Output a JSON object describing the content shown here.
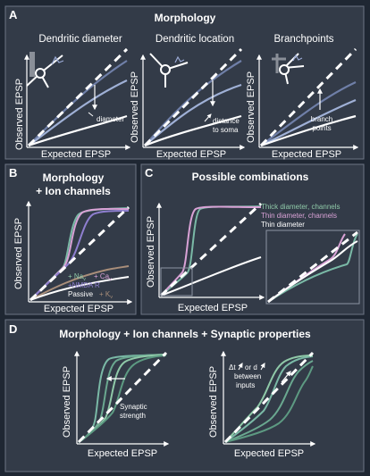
{
  "panels": {
    "A": {
      "letter": "A",
      "title": "Morphology",
      "plots": [
        {
          "title": "Dendritic diameter",
          "annotation": "diameter"
        },
        {
          "title": "Dendritic location",
          "annotation_line1": "distance",
          "annotation_line2": "to soma"
        },
        {
          "title": "Branchpoints",
          "annotation_line1": "branch",
          "annotation_line2": "points"
        }
      ]
    },
    "B": {
      "letter": "B",
      "title_line1": "Morphology",
      "title_line2": "+ Ion channels",
      "legend": [
        "+ Na",
        "+ Ca",
        "+NMDA R",
        "Passive",
        "+ K"
      ],
      "legend_subscripts": [
        "v",
        "v",
        "v"
      ]
    },
    "C": {
      "letter": "C",
      "title": "Possible combinations",
      "legend": [
        "Thick diameter, channels",
        "Thin diameter, channels",
        "Thin diameter"
      ]
    },
    "D": {
      "letter": "D",
      "title": "Morphology + Ion channels + Synaptic properties",
      "annotation_left_line1": "Synaptic",
      "annotation_left_line2": "strength",
      "annotation_right_line1": "Δt",
      "annotation_right_line1b": "or d",
      "annotation_right_line2": "between",
      "annotation_right_line3": "inputs"
    }
  },
  "axes": {
    "x_label": "Expected EPSP",
    "y_label": "Observed EPSP"
  },
  "colors": {
    "background": "#1f2733",
    "panel": "#333b48",
    "curve_dark": "#7a8bb0",
    "curve_light": "#ffffff",
    "green": "#8fc9a8",
    "pink": "#d9a2d6",
    "purple": "#8f7fd0",
    "brown": "#a98e7a",
    "teal": "#7ab9a6"
  }
}
